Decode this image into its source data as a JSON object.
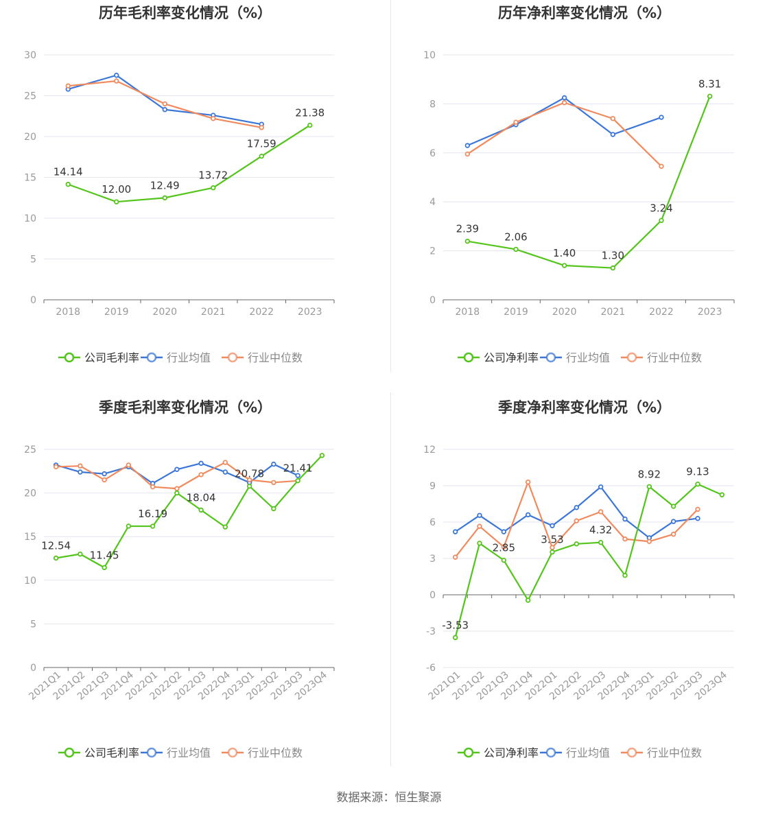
{
  "colors": {
    "company": "#52c41a",
    "industry_avg": "#3a76d8",
    "industry_median": "#f08a5d",
    "grid": "#e3e6ef",
    "axis": "#666666",
    "tick_text": "#999999",
    "title": "#333333",
    "label": "#333333"
  },
  "legend": {
    "gross_company": "公司毛利率",
    "net_company": "公司净利率",
    "industry_avg": "行业均值",
    "industry_median": "行业中位数"
  },
  "source": "数据来源：恒生聚源",
  "chart_data": [
    {
      "type": "line",
      "title": "历年毛利率变化情况（%）",
      "categories": [
        "2018",
        "2019",
        "2020",
        "2021",
        "2022",
        "2023"
      ],
      "ylim": [
        0,
        30
      ],
      "yticks": [
        0,
        5,
        10,
        15,
        20,
        25,
        30
      ],
      "series": [
        {
          "name": "公司毛利率",
          "values": [
            14.14,
            12.0,
            12.49,
            13.72,
            17.59,
            21.38
          ],
          "labels": [
            "14.14",
            "12.00",
            "12.49",
            "13.72",
            "17.59",
            "21.38"
          ]
        },
        {
          "name": "行业均值",
          "values": [
            25.8,
            27.5,
            23.3,
            22.6,
            21.5,
            null
          ]
        },
        {
          "name": "行业中位数",
          "values": [
            26.2,
            26.8,
            24.0,
            22.2,
            21.1,
            null
          ]
        }
      ]
    },
    {
      "type": "line",
      "title": "历年净利率变化情况（%）",
      "categories": [
        "2018",
        "2019",
        "2020",
        "2021",
        "2022",
        "2023"
      ],
      "ylim": [
        0,
        10
      ],
      "yticks": [
        0,
        2,
        4,
        6,
        8,
        10
      ],
      "series": [
        {
          "name": "公司净利率",
          "values": [
            2.39,
            2.06,
            1.4,
            1.3,
            3.24,
            8.31
          ],
          "labels": [
            "2.39",
            "2.06",
            "1.40",
            "1.30",
            "3.24",
            "8.31"
          ]
        },
        {
          "name": "行业均值",
          "values": [
            6.3,
            7.15,
            8.25,
            6.75,
            7.45,
            null
          ]
        },
        {
          "name": "行业中位数",
          "values": [
            5.95,
            7.25,
            8.05,
            7.4,
            5.45,
            null
          ]
        }
      ]
    },
    {
      "type": "line",
      "title": "季度毛利率变化情况（%）",
      "categories": [
        "2021Q1",
        "2021Q2",
        "2021Q3",
        "2021Q4",
        "2022Q1",
        "2022Q2",
        "2022Q3",
        "2022Q4",
        "2023Q1",
        "2023Q2",
        "2023Q3",
        "2023Q4"
      ],
      "ylim": [
        0,
        25
      ],
      "yticks": [
        0,
        5,
        10,
        15,
        20,
        25
      ],
      "series": [
        {
          "name": "公司毛利率",
          "values": [
            12.54,
            13.0,
            11.45,
            16.2,
            16.19,
            20.0,
            18.04,
            16.1,
            20.78,
            18.2,
            21.41,
            24.3
          ],
          "labels": [
            "12.54",
            null,
            "11.45",
            null,
            "16.19",
            null,
            "18.04",
            null,
            "20.78",
            null,
            "21.41",
            null
          ]
        },
        {
          "name": "行业均值",
          "values": [
            23.2,
            22.4,
            22.2,
            23.0,
            21.1,
            22.7,
            23.4,
            22.4,
            21.2,
            23.3,
            22.0,
            null
          ]
        },
        {
          "name": "行业中位数",
          "values": [
            23.0,
            23.1,
            21.5,
            23.2,
            20.7,
            20.5,
            22.1,
            23.5,
            21.5,
            21.2,
            21.4,
            null
          ]
        }
      ]
    },
    {
      "type": "line",
      "title": "季度净利率变化情况（%）",
      "categories": [
        "2021Q1",
        "2021Q2",
        "2021Q3",
        "2021Q4",
        "2022Q1",
        "2022Q2",
        "2022Q3",
        "2022Q4",
        "2023Q1",
        "2023Q2",
        "2023Q3",
        "2023Q4"
      ],
      "ylim": [
        -6,
        12
      ],
      "yticks": [
        -6,
        -3,
        0,
        3,
        6,
        9,
        12
      ],
      "series": [
        {
          "name": "公司净利率",
          "values": [
            -3.53,
            4.25,
            2.85,
            -0.45,
            3.53,
            4.2,
            4.32,
            1.6,
            8.92,
            7.3,
            9.13,
            8.25
          ],
          "labels": [
            "-3.53",
            null,
            "2.85",
            null,
            "3.53",
            null,
            "4.32",
            null,
            "8.92",
            null,
            "9.13",
            null
          ]
        },
        {
          "name": "行业均值",
          "values": [
            5.2,
            6.55,
            5.2,
            6.6,
            5.7,
            7.2,
            8.9,
            6.25,
            4.7,
            6.05,
            6.3,
            null
          ]
        },
        {
          "name": "行业中位数",
          "values": [
            3.1,
            5.65,
            3.95,
            9.3,
            3.9,
            6.1,
            6.85,
            4.6,
            4.4,
            5.0,
            7.05,
            null
          ]
        }
      ]
    }
  ]
}
